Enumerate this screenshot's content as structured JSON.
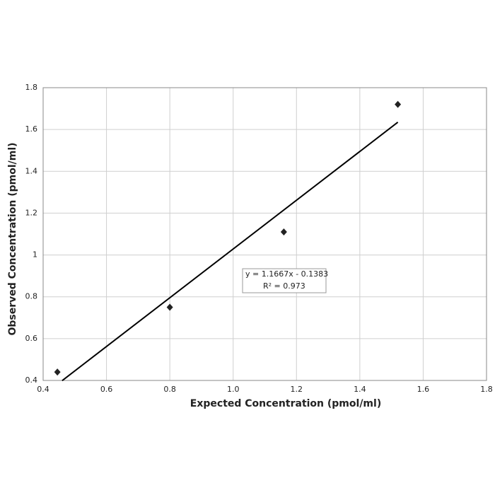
{
  "chart_data": {
    "type": "scatter",
    "x_label": "Expected Concentration (pmol/ml)",
    "y_label": "Observed Concentration (pmol/ml)",
    "series": [
      {
        "name": "Observed",
        "color": "#222222",
        "x": [
          0.445,
          0.8,
          1.16,
          1.52
        ],
        "values": [
          0.44,
          0.75,
          1.11,
          1.72
        ]
      }
    ],
    "trendline": {
      "color": "#000000",
      "x": [
        0.46,
        1.52
      ],
      "values": [
        0.399,
        1.635
      ]
    },
    "annotations": [
      "y = 1.1667x - 0.1383",
      "R² = 0.973"
    ],
    "xlim": [
      0.4,
      1.8
    ],
    "ylim": [
      0.4,
      1.8
    ],
    "xticks": [
      0.4,
      0.6,
      0.8,
      {
        "value": 1,
        "label": "1.0"
      },
      1.2,
      1.4,
      1.6,
      1.8
    ],
    "yticks": [
      0.4,
      0.6,
      0.8,
      1,
      1.2,
      1.4,
      1.6,
      1.8
    ],
    "grid": true
  }
}
